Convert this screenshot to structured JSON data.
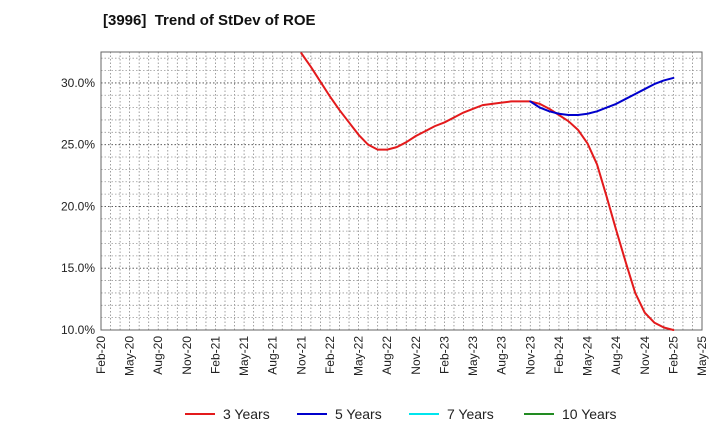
{
  "chart_data": {
    "type": "line",
    "title": "[3996]  Trend of StDev of ROE",
    "xlabel": "",
    "ylabel": "",
    "ylim": [
      10,
      32.5
    ],
    "y_ticks": [
      10,
      15,
      20,
      25,
      30
    ],
    "y_tick_labels": [
      "10.0%",
      "15.0%",
      "20.0%",
      "25.0%",
      "30.0%"
    ],
    "x_tick_labels": [
      "Feb-20",
      "May-20",
      "Aug-20",
      "Nov-20",
      "Feb-21",
      "May-21",
      "Aug-21",
      "Nov-21",
      "Feb-22",
      "May-22",
      "Aug-22",
      "Nov-22",
      "Feb-23",
      "May-23",
      "Aug-23",
      "Nov-23",
      "Feb-24",
      "May-24",
      "Aug-24",
      "Nov-24",
      "Feb-25",
      "May-25"
    ],
    "grid": true,
    "legend_position": "bottom",
    "series": [
      {
        "name": "3 Years",
        "color": "#e31a1c",
        "x_index": [
          7,
          7.333,
          7.667,
          8,
          8.333,
          8.667,
          9,
          9.333,
          9.667,
          10,
          10.333,
          10.667,
          11,
          11.333,
          11.667,
          12,
          12.333,
          12.667,
          13,
          13.333,
          13.667,
          14,
          14.333,
          14.667,
          15,
          15.333,
          15.667,
          16,
          16.333,
          16.667,
          17,
          17.333,
          17.667,
          18,
          18.333,
          18.667,
          19,
          19.333,
          19.667,
          20
        ],
        "values": [
          32.4,
          31.3,
          30.1,
          28.9,
          27.8,
          26.8,
          25.8,
          25.0,
          24.6,
          24.6,
          24.8,
          25.2,
          25.7,
          26.1,
          26.5,
          26.8,
          27.2,
          27.6,
          27.9,
          28.2,
          28.3,
          28.4,
          28.5,
          28.5,
          28.5,
          28.3,
          27.9,
          27.4,
          26.9,
          26.2,
          25.1,
          23.4,
          20.8,
          18.1,
          15.5,
          13.0,
          11.4,
          10.6,
          10.2,
          10.0
        ]
      },
      {
        "name": "5 Years",
        "color": "#0000cc",
        "x_index": [
          15,
          15.333,
          15.667,
          16,
          16.333,
          16.667,
          17,
          17.333,
          17.667,
          18,
          18.333,
          18.667,
          19,
          19.333,
          19.667,
          20
        ],
        "values": [
          28.5,
          28.0,
          27.7,
          27.5,
          27.4,
          27.4,
          27.5,
          27.7,
          28.0,
          28.3,
          28.7,
          29.1,
          29.5,
          29.9,
          30.2,
          30.4
        ]
      },
      {
        "name": "7 Years",
        "color": "#00e5ee",
        "x_index": [],
        "values": []
      },
      {
        "name": "10 Years",
        "color": "#228b22",
        "x_index": [],
        "values": []
      }
    ]
  }
}
